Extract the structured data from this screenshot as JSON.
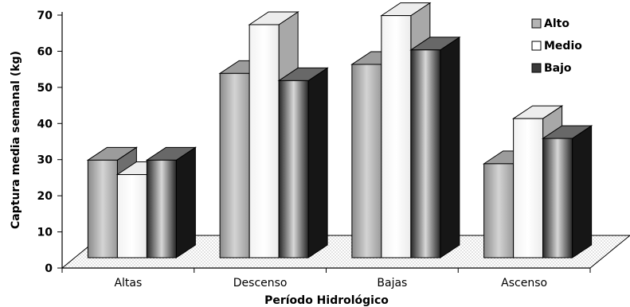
{
  "chart_data": {
    "type": "bar",
    "categories": [
      "Altas",
      "Descenso",
      "Bajas",
      "Ascenso"
    ],
    "series": [
      {
        "name": "Alto",
        "values": [
          27,
          51,
          53.5,
          26
        ]
      },
      {
        "name": "Medio",
        "values": [
          23,
          64.5,
          67,
          38.5
        ]
      },
      {
        "name": "Bajo",
        "values": [
          27,
          49,
          57.5,
          33
        ]
      }
    ],
    "xlabel": "Período Hidrológico",
    "ylabel": "Captura media semanal (kg)",
    "ylim": [
      0,
      70
    ],
    "yticks": [
      0,
      10,
      20,
      30,
      40,
      50,
      60,
      70
    ],
    "legend_position": "right",
    "style": "3d-clustered-bar",
    "colors": {
      "Alto": "#b4b4b4",
      "Medio": "#ffffff",
      "Bajo": "#3a3a3a"
    }
  }
}
